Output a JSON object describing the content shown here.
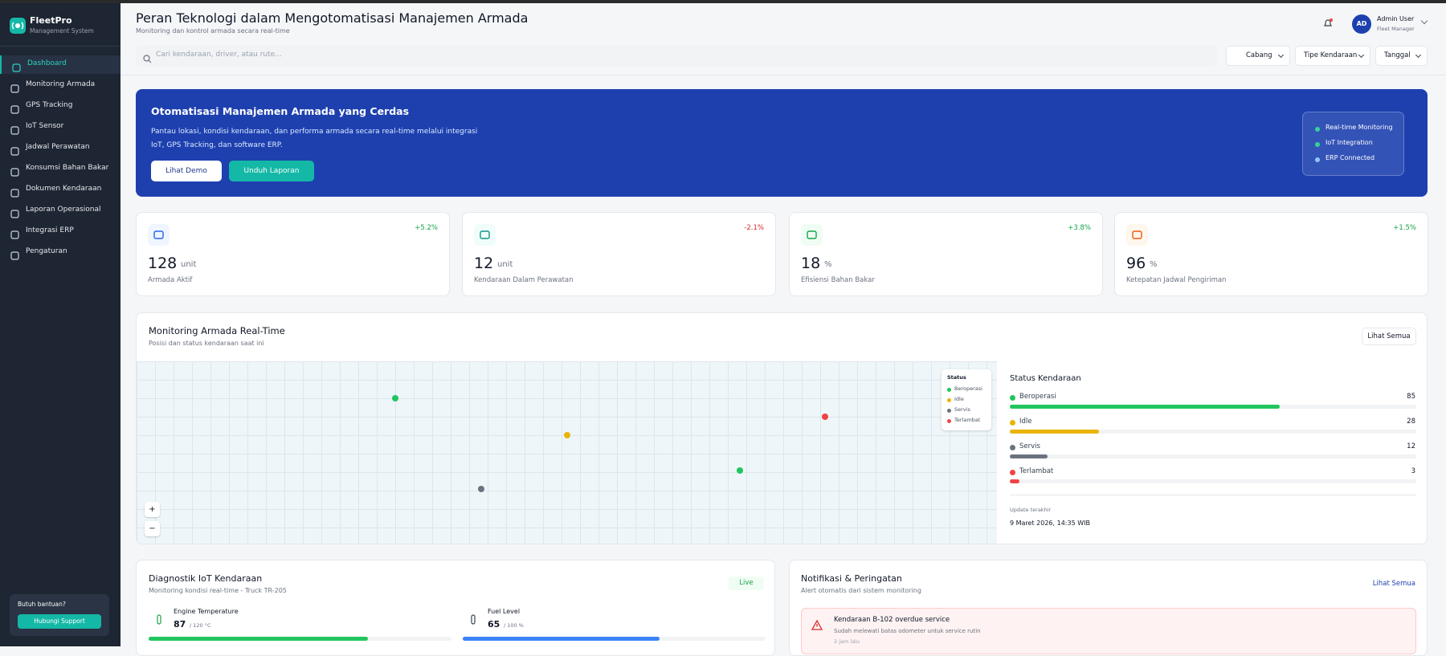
{
  "sidebar": {
    "brand": "FleetPro",
    "tagline": "Management System",
    "menu": [
      "Dashboard",
      "Monitoring Armada",
      "GPS Tracking",
      "IoT Sensor",
      "Jadwal Perawatan",
      "Konsumsi Bahan Bakar",
      "Dokumen Kendaraan",
      "Laporan Operasional",
      "Integrasi ERP",
      "Pengaturan"
    ],
    "help": {
      "text": "Butuh bantuan?",
      "button": "Hubungi Support"
    }
  },
  "header": {
    "title": "Peran Teknologi dalam Mengotomatisasi Manajemen Armada",
    "subtitle": "Monitoring dan kontrol armada secara real-time",
    "search_placeholder": "Cari kendaraan, driver, atau rute...",
    "filters": [
      "Cabang",
      "Tipe Kendaraan",
      "Tanggal"
    ],
    "user": {
      "initials": "AD",
      "name": "Admin User",
      "role": "Fleet Manager"
    }
  },
  "banner": {
    "title": "Otomatisasi Manajemen Armada yang Cerdas",
    "description": "Pantau lokasi, kondisi kendaraan, dan performa armada secara real-time melalui integrasi IoT, GPS Tracking, dan software ERP.",
    "buttons": [
      "Lihat Demo",
      "Unduh Laporan"
    ],
    "badges": [
      "Real-time Monitoring",
      "IoT Integration",
      "ERP Connected"
    ]
  },
  "stats": [
    {
      "value": "128",
      "unit": "unit",
      "label": "Armada Aktif",
      "trend": "+5.2%"
    },
    {
      "value": "12",
      "unit": "unit",
      "label": "Kendaraan Dalam Perawatan",
      "trend": "-2.1%"
    },
    {
      "value": "18",
      "unit": "%",
      "label": "Efisiensi Bahan Bakar",
      "trend": "+3.8%"
    },
    {
      "value": "96",
      "unit": "%",
      "label": "Ketepatan Jadwal Pengiriman",
      "trend": "+1.5%"
    }
  ],
  "monitoring": {
    "title": "Monitoring Armada Real-Time",
    "subtitle": "Posisi dan status kendaraan saat ini",
    "action": "Lihat Semua",
    "legend": {
      "title": "Status",
      "items": [
        "Beroperasi",
        "Idle",
        "Servis",
        "Terlambat"
      ]
    },
    "status": {
      "title": "Status Kendaraan",
      "items": [
        {
          "name": "Beroperasi",
          "value": 85
        },
        {
          "name": "Idle",
          "value": 28
        },
        {
          "name": "Servis",
          "value": 12
        },
        {
          "name": "Terlambat",
          "value": 3
        }
      ],
      "update_label": "Update terakhir",
      "update_time": "9 Maret 2026, 14:35 WIB"
    }
  },
  "iot": {
    "title": "Diagnostik IoT Kendaraan",
    "subtitle": "Monitoring kondisi real-time - Truck TR-205",
    "badge": "Live",
    "metrics": [
      {
        "name": "Engine Temperature",
        "value": 87,
        "max": 120,
        "max_label": "/ 120 °C"
      },
      {
        "name": "Fuel Level",
        "value": 65,
        "max": 100,
        "max_label": "/ 100 %"
      }
    ]
  },
  "notifications": {
    "title": "Notifikasi & Peringatan",
    "subtitle": "Alert otomatis dari sistem monitoring",
    "action": "Lihat Semua",
    "items": [
      {
        "title": "Kendaraan B-102 overdue service",
        "text": "Sudah melewati batas odometer untuk service rutin",
        "time": "2 jam lalu"
      }
    ]
  }
}
